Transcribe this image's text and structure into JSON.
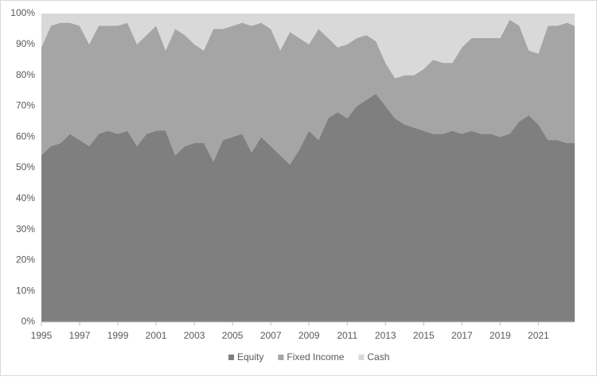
{
  "chart_data": {
    "type": "stacked-area",
    "x": [
      1995,
      1995.5,
      1996,
      1996.5,
      1997,
      1997.5,
      1998,
      1998.5,
      1999,
      1999.5,
      2000,
      2000.5,
      2001,
      2001.5,
      2002,
      2002.5,
      2003,
      2003.5,
      2004,
      2004.5,
      2005,
      2005.5,
      2006,
      2006.5,
      2007,
      2007.5,
      2008,
      2008.5,
      2009,
      2009.5,
      2010,
      2010.5,
      2011,
      2011.5,
      2012,
      2012.5,
      2013,
      2013.5,
      2014,
      2014.5,
      2015,
      2015.5,
      2016,
      2016.5,
      2017,
      2017.5,
      2018,
      2018.5,
      2019,
      2019.5,
      2020,
      2020.5,
      2021,
      2021.5,
      2022,
      2022.5,
      2022.9
    ],
    "series": [
      {
        "name": "Equity",
        "color": "#7f7f7f",
        "values": [
          54,
          57,
          58,
          61,
          59,
          57,
          61,
          62,
          61,
          62,
          57,
          61,
          62,
          62,
          54,
          57,
          58,
          58,
          52,
          59,
          60,
          61,
          55,
          60,
          57,
          54,
          51,
          56,
          62,
          59,
          66,
          68,
          66,
          70,
          72,
          74,
          70,
          66,
          64,
          63,
          62,
          61,
          61,
          62,
          61,
          62,
          61,
          61,
          60,
          61,
          65,
          67,
          64,
          59,
          59,
          58,
          58
        ]
      },
      {
        "name": "Fixed Income",
        "color": "#a5a5a5",
        "values": [
          35,
          39,
          39,
          36,
          37,
          33,
          35,
          34,
          35,
          35,
          33,
          32,
          34,
          26,
          41,
          36,
          32,
          30,
          43,
          36,
          36,
          36,
          41,
          37,
          38,
          34,
          43,
          36,
          28,
          36,
          26,
          21,
          24,
          22,
          21,
          17,
          14,
          13,
          16,
          17,
          20,
          24,
          23,
          22,
          28,
          30,
          31,
          31,
          32,
          37,
          31,
          21,
          23,
          37,
          37,
          39,
          38
        ]
      },
      {
        "name": "Cash",
        "color": "#d9d9d9",
        "values": [
          11,
          4,
          3,
          3,
          4,
          10,
          4,
          4,
          4,
          3,
          10,
          7,
          4,
          12,
          5,
          7,
          10,
          12,
          5,
          5,
          4,
          3,
          4,
          3,
          5,
          12,
          6,
          8,
          10,
          5,
          8,
          11,
          10,
          8,
          7,
          9,
          16,
          21,
          20,
          20,
          18,
          15,
          16,
          16,
          11,
          8,
          8,
          8,
          8,
          2,
          4,
          12,
          13,
          4,
          4,
          3,
          4
        ]
      }
    ],
    "xlim": [
      1995,
      2022.9
    ],
    "xticks": [
      1995,
      1997,
      1999,
      2001,
      2003,
      2005,
      2007,
      2009,
      2011,
      2013,
      2015,
      2017,
      2019,
      2021
    ],
    "ylim": [
      0,
      100
    ],
    "yticks": [
      {
        "value": 0,
        "label": "0%"
      },
      {
        "value": 10,
        "label": "10%"
      },
      {
        "value": 20,
        "label": "20%"
      },
      {
        "value": 30,
        "label": "30%"
      },
      {
        "value": 40,
        "label": "40%"
      },
      {
        "value": 50,
        "label": "50%"
      },
      {
        "value": 60,
        "label": "60%"
      },
      {
        "value": 70,
        "label": "70%"
      },
      {
        "value": 80,
        "label": "80%"
      },
      {
        "value": 90,
        "label": "90%"
      },
      {
        "value": 100,
        "label": "100%"
      }
    ],
    "legend": "bottom"
  }
}
